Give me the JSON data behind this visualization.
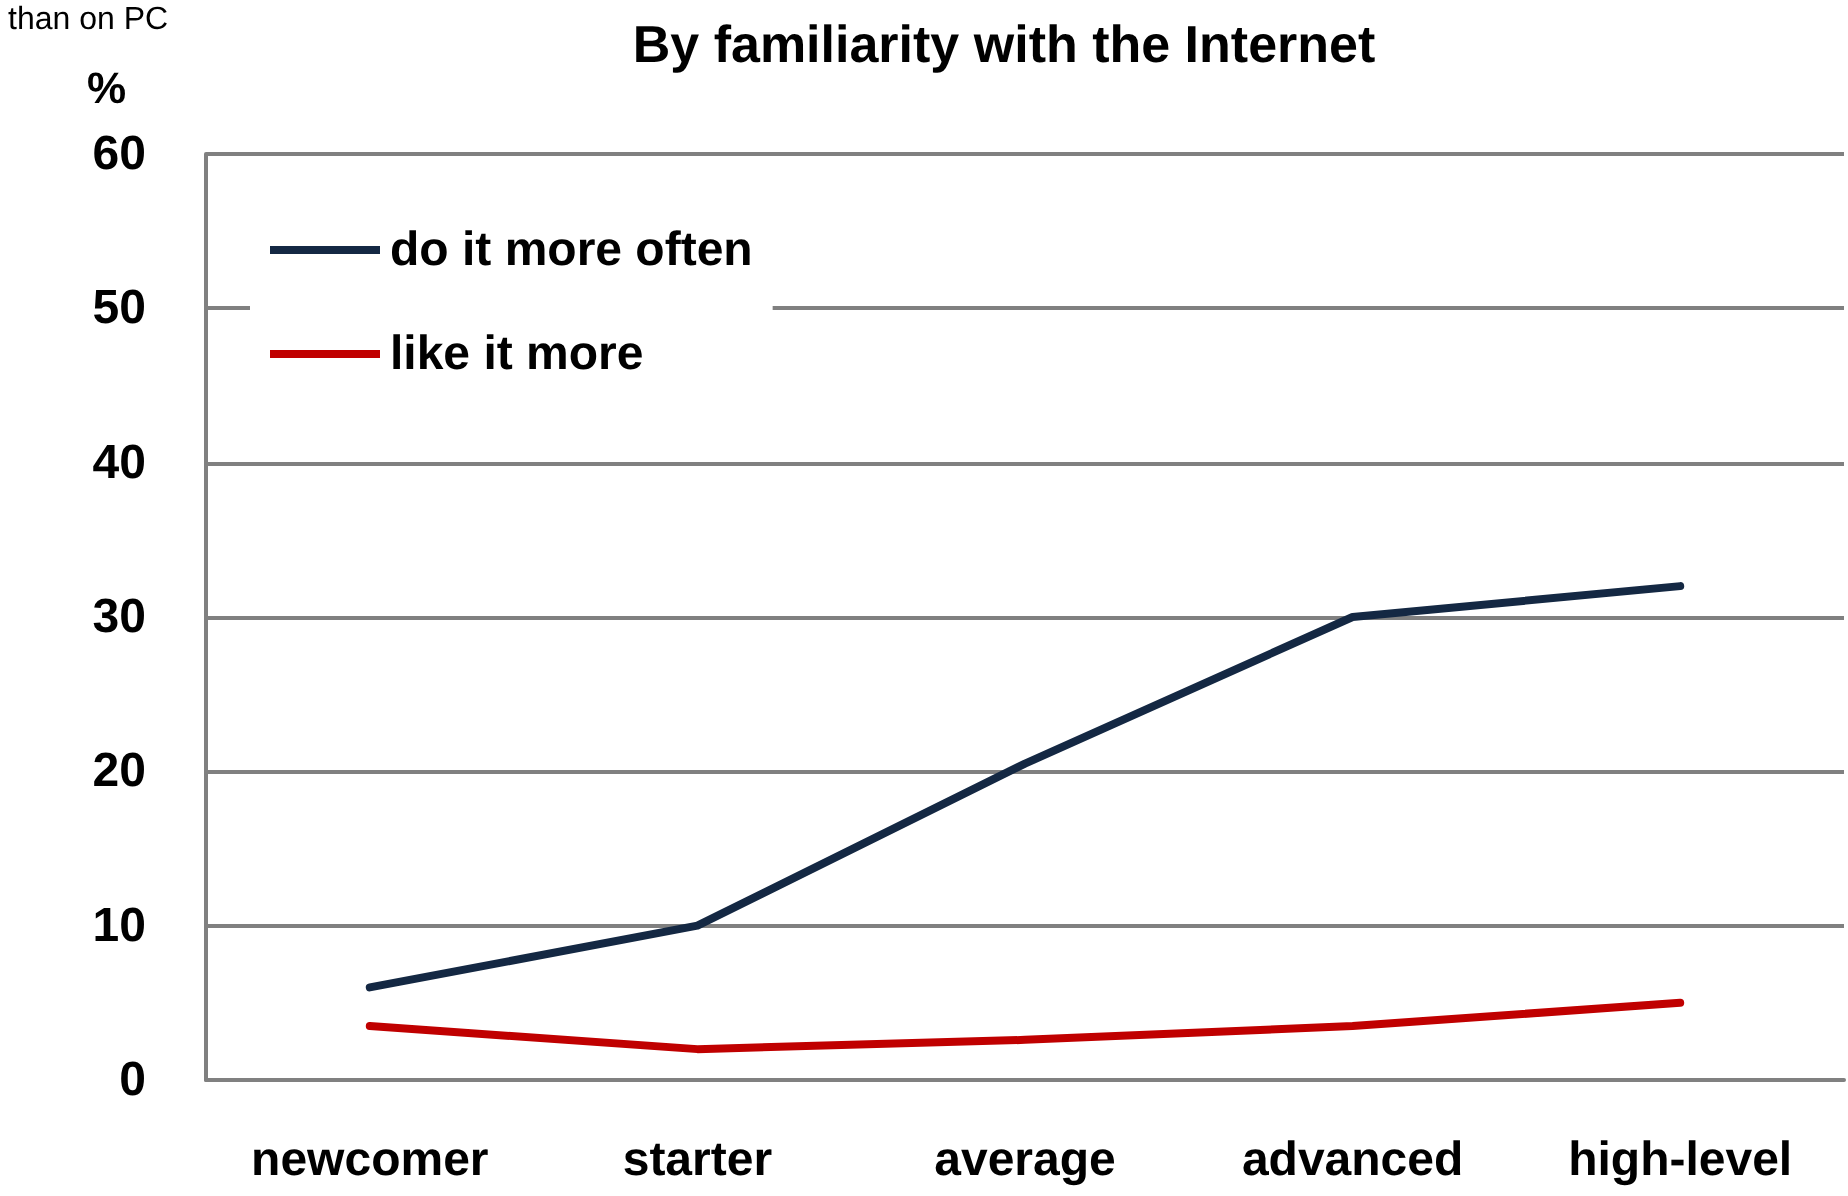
{
  "chart_data": {
    "type": "line",
    "title": "By familiarity with the Internet",
    "ylabel": "%",
    "annotations": [
      "than on PC"
    ],
    "categories": [
      "newcomer",
      "starter",
      "average",
      "advanced",
      "high-level"
    ],
    "series": [
      {
        "name": "do it more often",
        "color": "#142843",
        "values": [
          6,
          10,
          20.5,
          30,
          32
        ]
      },
      {
        "name": "like it more",
        "color": "#c00000",
        "values": [
          3.5,
          2,
          2.6,
          3.5,
          5
        ]
      }
    ],
    "ylim": [
      0,
      60
    ],
    "yticks": [
      0,
      10,
      20,
      30,
      40,
      50,
      60
    ],
    "grid": "y",
    "legend": "top left",
    "marker": "none",
    "line_style": "solid"
  }
}
